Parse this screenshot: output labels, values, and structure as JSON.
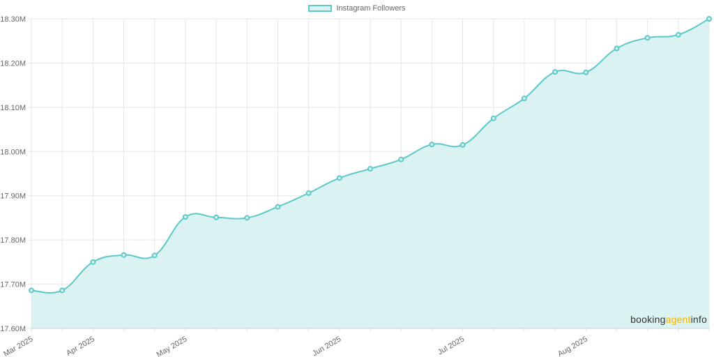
{
  "legend": {
    "label": "Instagram Followers"
  },
  "watermark": {
    "part1": "booking",
    "part2": "agent",
    "part3": "info"
  },
  "colors": {
    "line": "#5cc8c8",
    "fill": "#d9f1f1",
    "grid": "#e6e6e6",
    "accent": "#f0b400"
  },
  "chart_data": {
    "type": "area",
    "title": "",
    "xlabel": "",
    "ylabel": "",
    "ylim": [
      17600000,
      18300000
    ],
    "y_ticks": [
      {
        "value": 17600000,
        "label": "17.60M"
      },
      {
        "value": 17700000,
        "label": "17.70M"
      },
      {
        "value": 17800000,
        "label": "17.80M"
      },
      {
        "value": 17900000,
        "label": "17.90M"
      },
      {
        "value": 18000000,
        "label": "18.00M"
      },
      {
        "value": 18100000,
        "label": "18.10M"
      },
      {
        "value": 18200000,
        "label": "18.20M"
      },
      {
        "value": 18300000,
        "label": "18.30M"
      }
    ],
    "x_tick_labels": [
      {
        "index": 0,
        "label": "Mar 2025"
      },
      {
        "index": 2,
        "label": "Apr 2025"
      },
      {
        "index": 5,
        "label": "May 2025"
      },
      {
        "index": 10,
        "label": "Jun 2025"
      },
      {
        "index": 14,
        "label": "Jul 2025"
      },
      {
        "index": 18,
        "label": "Aug 2025"
      }
    ],
    "grid": true,
    "legend_position": "top-center",
    "series": [
      {
        "name": "Instagram Followers",
        "values": [
          17686000,
          17686000,
          17750000,
          17766000,
          17765000,
          17852000,
          17851000,
          17850000,
          17875000,
          17906000,
          17940000,
          17961000,
          17982000,
          18016000,
          18015000,
          18075000,
          18120000,
          18180000,
          18179000,
          18233000,
          18257000,
          18264000,
          18300000
        ]
      }
    ]
  }
}
